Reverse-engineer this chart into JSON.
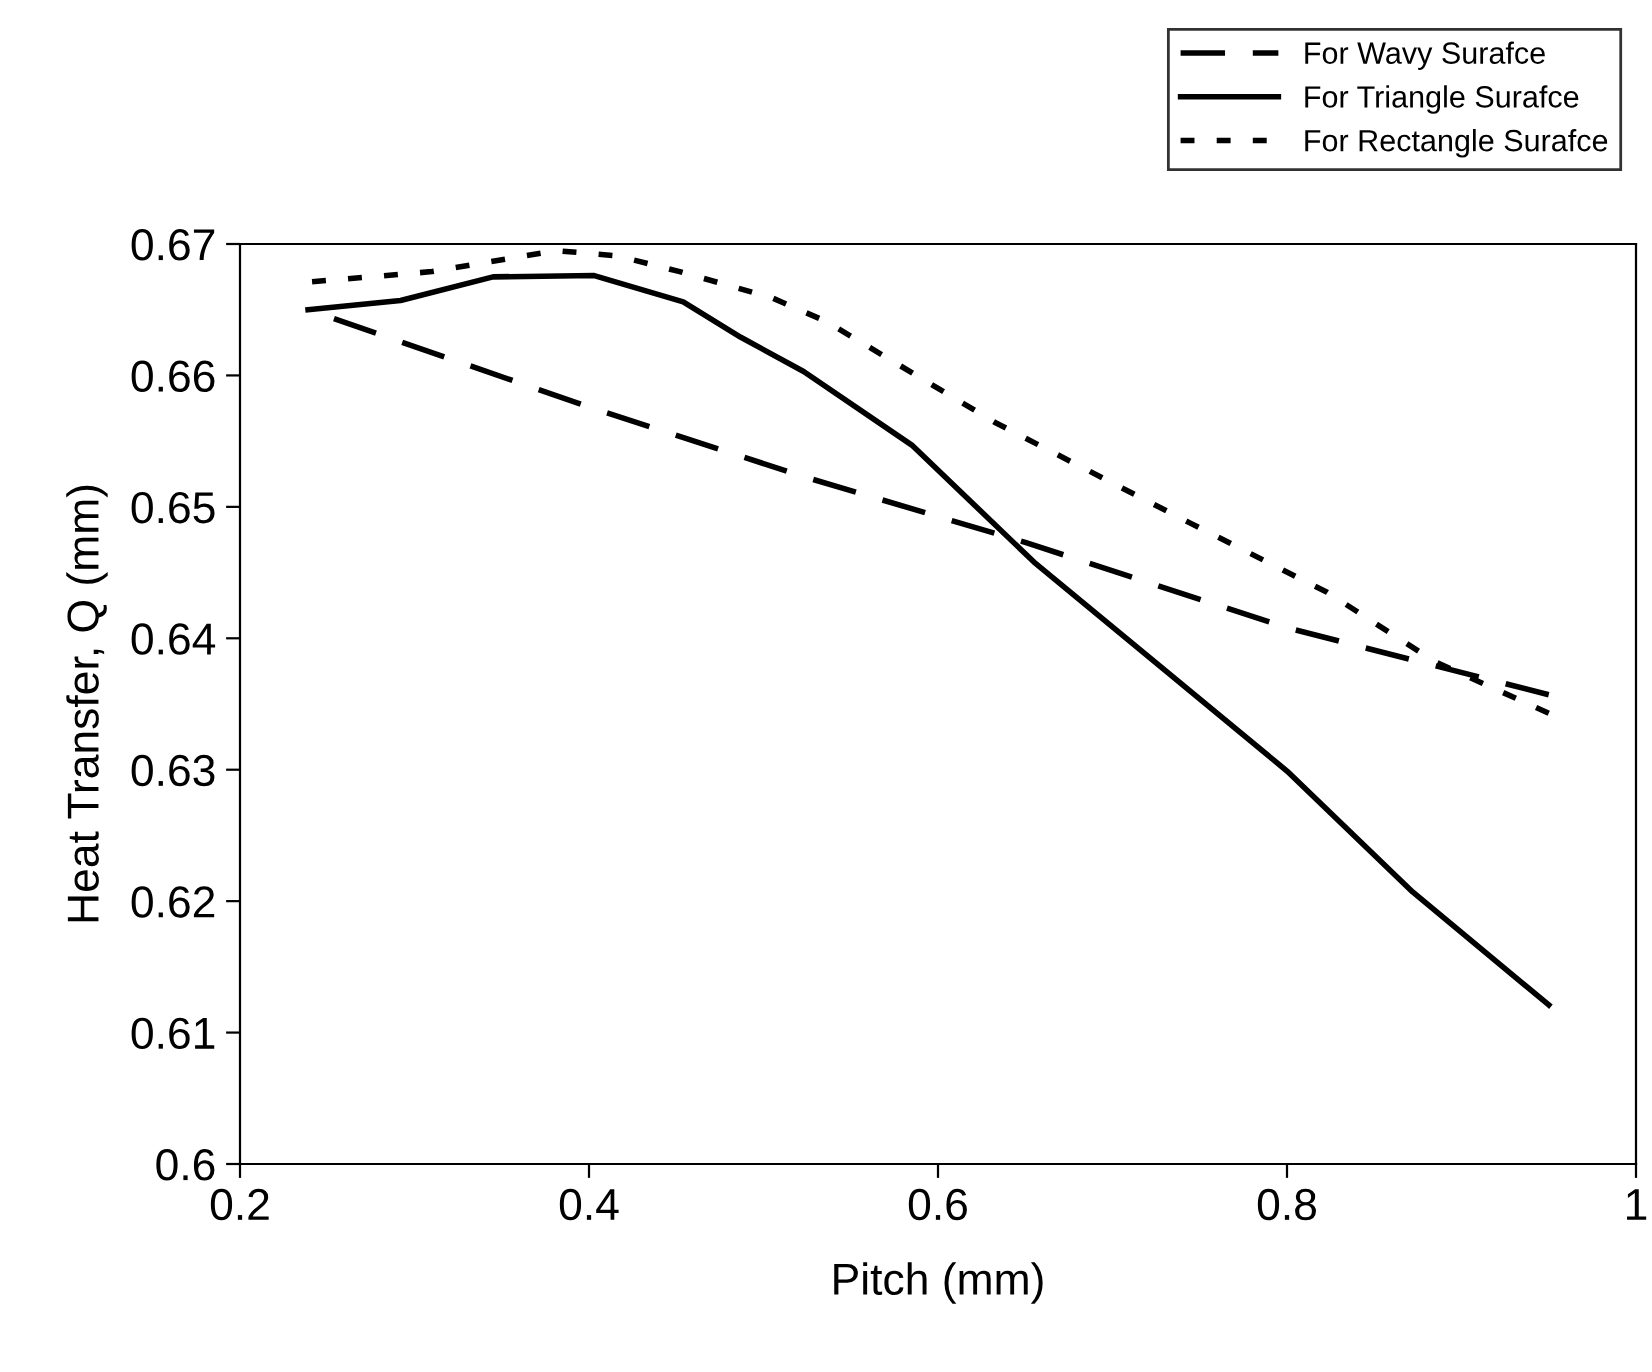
{
  "chart_data": {
    "type": "line",
    "xlabel": "Pitch (mm)",
    "ylabel": "Heat Transfer, Q (mm)",
    "xlim": [
      0.2,
      1
    ],
    "xticks": [
      0.2,
      0.4,
      0.6,
      0.8,
      1
    ],
    "ylim": [
      0.6,
      0.67
    ],
    "yticks": [
      0.6,
      0.61,
      0.62,
      0.63,
      0.64,
      0.65,
      0.66,
      0.67
    ],
    "grid": false,
    "legend": "top right",
    "marker": "none",
    "series": [
      {
        "name": "For Wavy Surafce",
        "color": "#000000",
        "line_style": "dashed",
        "x": [
          0.239,
          0.4,
          0.523,
          0.65,
          0.8,
          0.95
        ],
        "values": [
          0.665,
          0.6576,
          0.6523,
          0.6473,
          0.6408,
          0.6357
        ]
      },
      {
        "name": "For Triangle Surafce",
        "color": "#000000",
        "line_style": "solid",
        "x": [
          0.239,
          0.292,
          0.345,
          0.403,
          0.454,
          0.487,
          0.523,
          0.585,
          0.655,
          0.8,
          0.872,
          0.95
        ],
        "values": [
          0.665,
          0.6657,
          0.6675,
          0.6676,
          0.6656,
          0.6629,
          0.6603,
          0.6547,
          0.6458,
          0.6299,
          0.6207,
          0.6121
        ]
      },
      {
        "name": "For Rectangle Surafce",
        "color": "#000000",
        "line_style": "dotted",
        "x": [
          0.239,
          0.31,
          0.381,
          0.416,
          0.452,
          0.505,
          0.536,
          0.633,
          0.744,
          0.823,
          0.885,
          0.95
        ],
        "values": [
          0.6671,
          0.6679,
          0.6695,
          0.6691,
          0.6679,
          0.6659,
          0.6641,
          0.6564,
          0.6488,
          0.6435,
          0.6382,
          0.6343
        ]
      }
    ]
  }
}
